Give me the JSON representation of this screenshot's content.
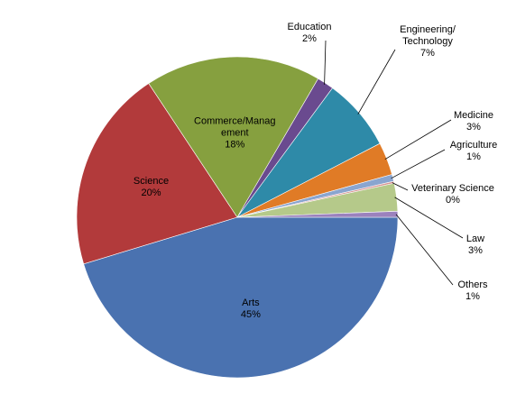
{
  "chart_data": {
    "type": "pie",
    "title": "",
    "slices": [
      {
        "label": "Arts",
        "percent_label": "45%",
        "value": 45.3,
        "color": "#4a72b0",
        "label_style": "inside",
        "label_lines": [
          "Arts"
        ]
      },
      {
        "label": "Science",
        "percent_label": "20%",
        "value": 20.4,
        "color": "#b23a3b",
        "label_style": "inside",
        "label_lines": [
          "Science"
        ]
      },
      {
        "label": "Commerce/Management",
        "percent_label": "18%",
        "value": 17.7,
        "color": "#86a03f",
        "label_style": "inside",
        "label_lines": [
          "Commerce/Manag",
          "ement"
        ]
      },
      {
        "label": "Education",
        "percent_label": "2%",
        "value": 1.7,
        "color": "#6a4a8f",
        "label_style": "outside",
        "label_lines": [
          "Education"
        ]
      },
      {
        "label": "Engineering/Technology",
        "percent_label": "7%",
        "value": 7.3,
        "color": "#2e8aa8",
        "label_style": "outside",
        "label_lines": [
          "Engineering/",
          "Technology"
        ]
      },
      {
        "label": "Medicine",
        "percent_label": "3%",
        "value": 3.3,
        "color": "#e07b26",
        "label_style": "outside",
        "label_lines": [
          "Medicine"
        ]
      },
      {
        "label": "Agriculture",
        "percent_label": "1%",
        "value": 0.7,
        "color": "#8aa5cf",
        "label_style": "outside",
        "label_lines": [
          "Agriculture"
        ]
      },
      {
        "label": "Veterinary Science",
        "percent_label": "0%",
        "value": 0.2,
        "color": "#d99694",
        "label_style": "outside",
        "label_lines": [
          "Veterinary Science"
        ]
      },
      {
        "label": "Law",
        "percent_label": "3%",
        "value": 2.8,
        "color": "#b5c98a",
        "label_style": "outside",
        "label_lines": [
          "Law"
        ]
      },
      {
        "label": "Others",
        "percent_label": "1%",
        "value": 0.6,
        "color": "#9b82bd",
        "label_style": "outside",
        "label_lines": [
          "Others"
        ]
      }
    ]
  }
}
